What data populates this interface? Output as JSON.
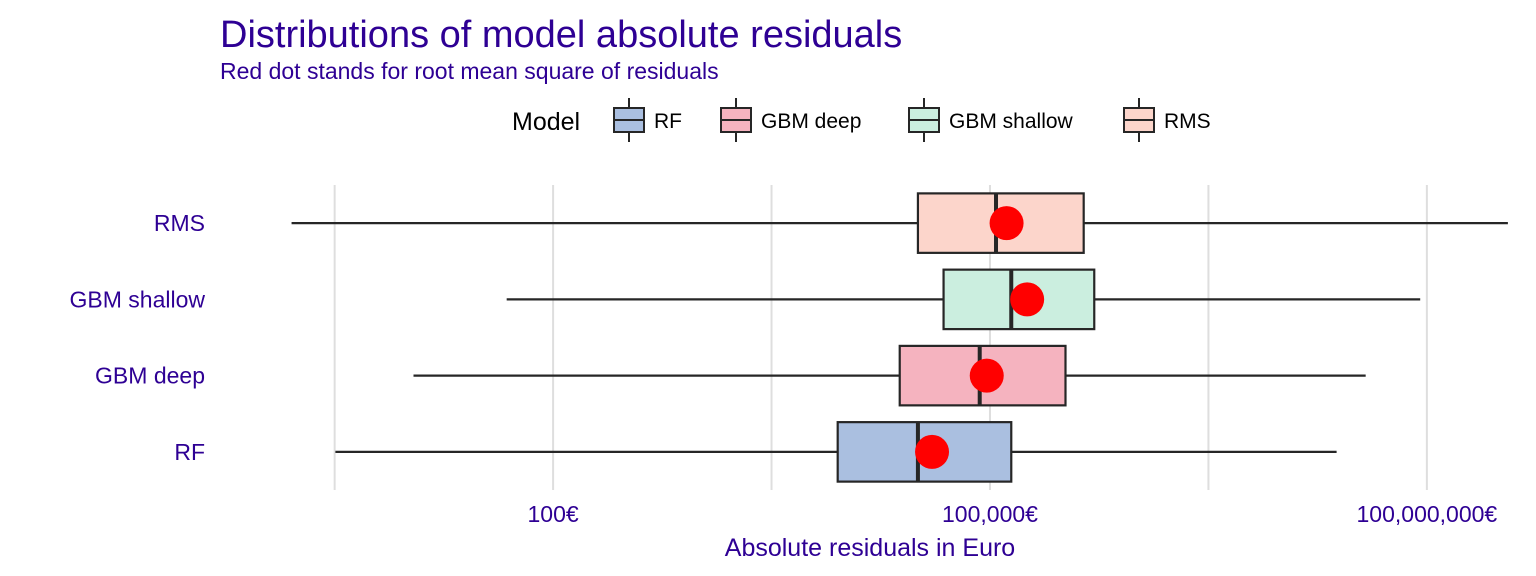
{
  "chart_data": {
    "type": "boxplot",
    "title": "Distributions of model absolute residuals",
    "subtitle": "Red dot stands for root mean square of residuals",
    "xlabel": "Absolute residuals in Euro",
    "ylabel": "",
    "x_scale": "log10",
    "xlim": [
      0.5,
      450000000
    ],
    "x_ticks": [
      100,
      100000,
      100000000
    ],
    "x_tick_labels": [
      "100€",
      "100,000€",
      "100,000,000€"
    ],
    "grid": "vertical",
    "legend": {
      "title": "Model",
      "position": "top",
      "entries": [
        "RF",
        "GBM deep",
        "GBM shallow",
        "RMS"
      ]
    },
    "series": [
      {
        "name": "RMS",
        "min": 1.6,
        "q1": 32000,
        "median": 110000,
        "q3": 440000,
        "max": 360000000,
        "rms": 130000,
        "color": "#fcd5cb"
      },
      {
        "name": "GBM shallow",
        "min": 48,
        "q1": 48000,
        "median": 140000,
        "q3": 520000,
        "max": 90000000,
        "rms": 180000,
        "color": "#cbeedf"
      },
      {
        "name": "GBM deep",
        "min": 11,
        "q1": 24000,
        "median": 85000,
        "q3": 330000,
        "max": 38000000,
        "rms": 95000,
        "color": "#f5b3bf"
      },
      {
        "name": "RF",
        "min": 3.2,
        "q1": 9000,
        "median": 32000,
        "q3": 140000,
        "max": 24000000,
        "rms": 40000,
        "color": "#aabfe0"
      }
    ],
    "rms_color": "#ff0000",
    "label_color": "#2e0094"
  }
}
